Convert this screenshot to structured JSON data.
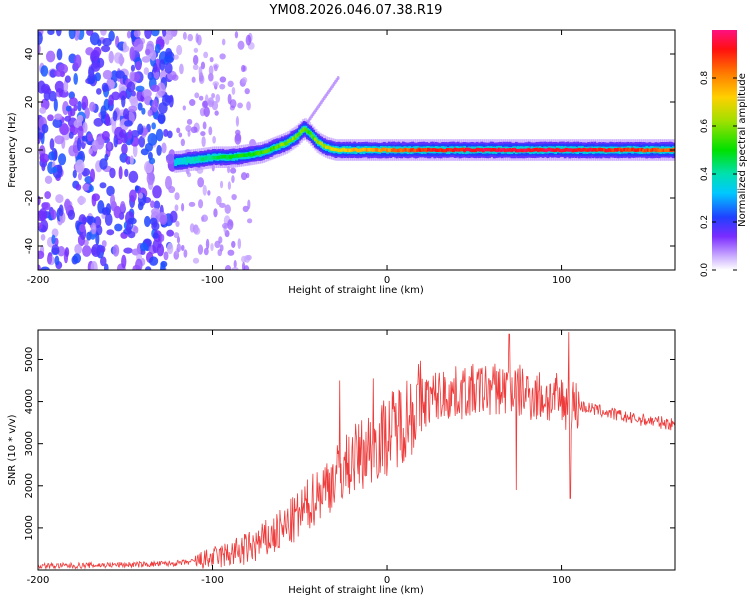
{
  "figure": {
    "title": "YM08.2026.046.07.38.R19"
  },
  "chart_data": [
    {
      "type": "heatmap",
      "title": "YM08.2026.046.07.38.R19",
      "xlabel": "Height of straight line (km)",
      "ylabel": "Frequency (Hz)",
      "xlim": [
        -200,
        165
      ],
      "ylim": [
        -50,
        50
      ],
      "xticks": [
        -200,
        -100,
        0,
        100
      ],
      "yticks": [
        -40,
        -20,
        0,
        20,
        40
      ],
      "colorbar": {
        "label": "Normalized spectral amplitude",
        "range": [
          0.0,
          1.0
        ],
        "ticks": [
          0.0,
          0.2,
          0.4,
          0.6,
          0.8
        ],
        "tick_labels": [
          "0.0",
          "0.2",
          "0.4",
          "0.6",
          "0.8"
        ]
      },
      "ridge": {
        "description_values": "dominant frequency (Hz) vs height (km)",
        "x": [
          -122,
          -110,
          -100,
          -90,
          -80,
          -72,
          -65,
          -58,
          -52,
          -48,
          -45,
          -40,
          -35,
          -30,
          -20,
          0,
          20,
          60,
          100,
          165
        ],
        "y": [
          -5,
          -4,
          -3,
          -3,
          -2,
          -1,
          1,
          3,
          6,
          9,
          7,
          3,
          1,
          0,
          0,
          0,
          0,
          0,
          0,
          0
        ],
        "amplitude": [
          0.35,
          0.4,
          0.45,
          0.5,
          0.5,
          0.55,
          0.55,
          0.6,
          0.6,
          0.55,
          0.55,
          0.6,
          0.65,
          0.7,
          0.75,
          0.8,
          0.9,
          0.95,
          0.95,
          0.85
        ]
      },
      "noise_region": {
        "x_range": [
          -200,
          -122
        ],
        "amplitude_range": [
          0.05,
          0.25
        ]
      },
      "colors": {
        "low": "#9a6cf0",
        "mid": "#00e000",
        "high": "#ff0000",
        "noise": "#6b1fe6"
      }
    },
    {
      "type": "line",
      "xlabel": "Height of straight line (km)",
      "ylabel": "SNR (10 * v/v)",
      "xlim": [
        -200,
        165
      ],
      "ylim": [
        0,
        5700
      ],
      "xticks": [
        -200,
        -100,
        0,
        100
      ],
      "yticks": [
        1000,
        2000,
        3000,
        4000,
        5000
      ],
      "series": [
        {
          "name": "SNR",
          "color": "#ee3b3b",
          "x": [
            -200,
            -180,
            -160,
            -140,
            -120,
            -110,
            -100,
            -90,
            -80,
            -70,
            -60,
            -50,
            -40,
            -30,
            -20,
            -10,
            0,
            10,
            20,
            30,
            40,
            50,
            60,
            70,
            80,
            90,
            100,
            110,
            120,
            130,
            140,
            150,
            165
          ],
          "y": [
            100,
            100,
            120,
            130,
            160,
            200,
            280,
            380,
            500,
            700,
            950,
            1300,
            1800,
            2200,
            2600,
            2900,
            3200,
            3600,
            4000,
            4150,
            4200,
            4250,
            4300,
            4300,
            4200,
            4100,
            4000,
            3900,
            3800,
            3700,
            3600,
            3550,
            3450
          ],
          "spikes": [
            {
              "x": -27,
              "y": 4500
            },
            {
              "x": -8,
              "y": 4550
            },
            {
              "x": 70,
              "y": 5600
            },
            {
              "x": 104,
              "y": 5650
            },
            {
              "x": 105,
              "y": 1700
            },
            {
              "x": 74,
              "y": 1900
            }
          ]
        }
      ]
    }
  ]
}
